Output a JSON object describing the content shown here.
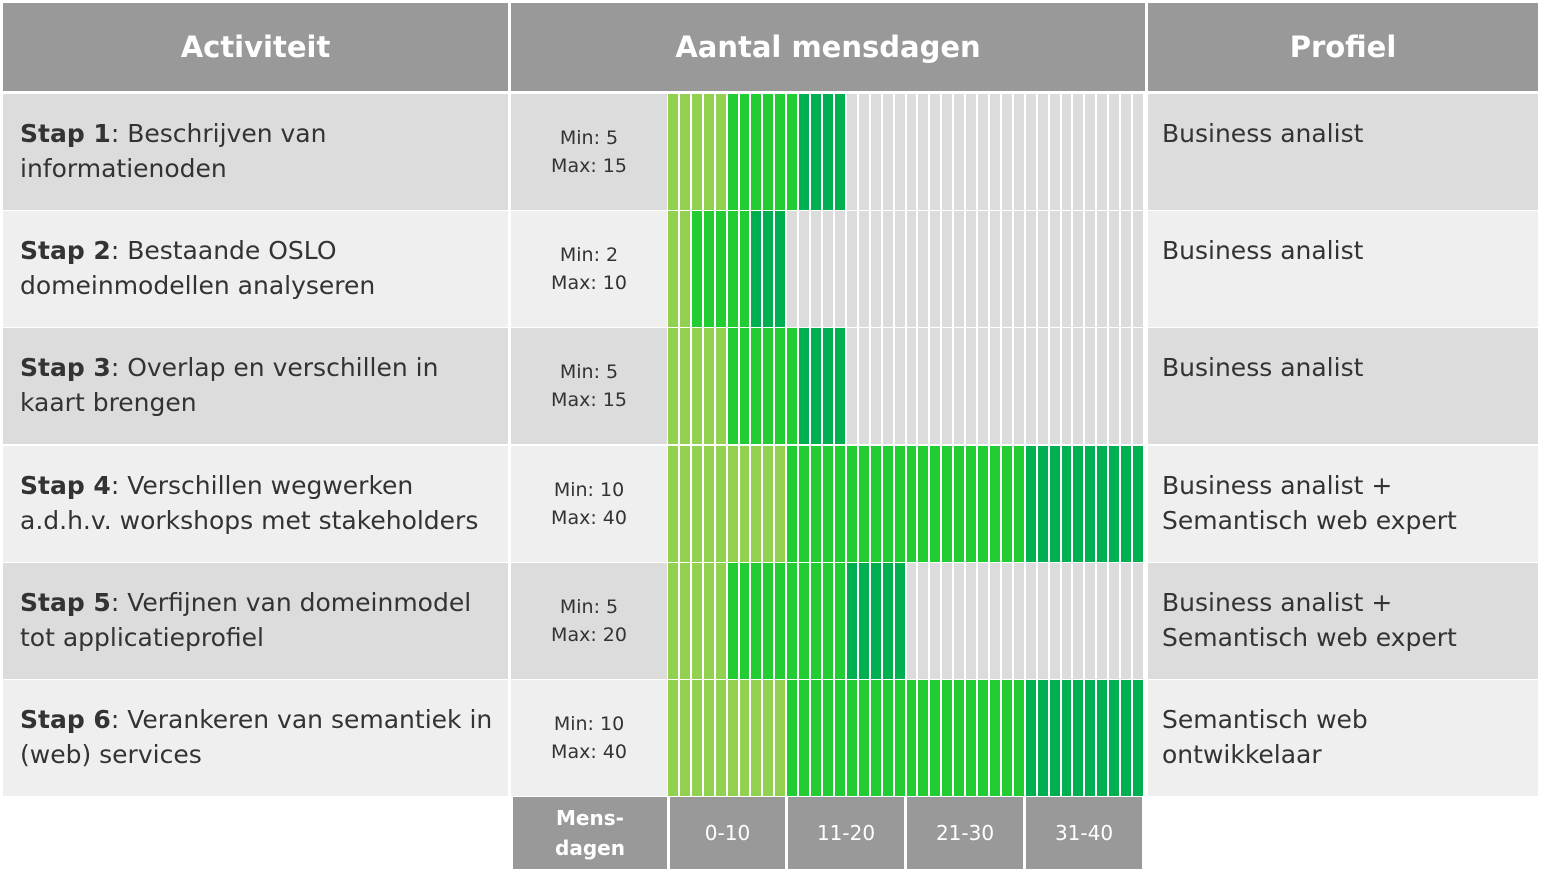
{
  "headers": {
    "activity": "Activiteit",
    "mandays": "Aantal mensdagen",
    "profile": "Profiel"
  },
  "rows": [
    {
      "step": "Stap 1",
      "name": "Beschrijven van informatienoden",
      "min_label": "Min: 5",
      "max_label": "Max: 15",
      "min": 5,
      "max": 15,
      "profile_lines": [
        "Business analist"
      ]
    },
    {
      "step": "Stap 2",
      "name": "Bestaande OSLO domeinmodellen analyseren",
      "min_label": "Min: 2",
      "max_label": "Max: 10",
      "min": 2,
      "max": 10,
      "profile_lines": [
        "Business analist"
      ]
    },
    {
      "step": "Stap 3",
      "name": "Overlap en verschillen in kaart brengen",
      "min_label": "Min: 5",
      "max_label": "Max: 15",
      "min": 5,
      "max": 15,
      "profile_lines": [
        "Business analist"
      ]
    },
    {
      "step": "Stap 4",
      "name": "Verschillen wegwerken a.d.h.v. workshops met stakeholders",
      "min_label": "Min: 10",
      "max_label": "Max: 40",
      "min": 10,
      "max": 40,
      "profile_lines": [
        "Business analist +",
        "Semantisch web expert"
      ]
    },
    {
      "step": "Stap 5",
      "name": "Verfijnen van domeinmodel tot applicatieprofiel",
      "min_label": "Min: 5",
      "max_label": "Max: 20",
      "min": 5,
      "max": 20,
      "profile_lines": [
        "Business analist +",
        "Semantisch web expert"
      ]
    },
    {
      "step": "Stap 6",
      "name": "Verankeren van semantiek in (web) services",
      "min_label": "Min: 10",
      "max_label": "Max: 40",
      "min": 10,
      "max": 40,
      "profile_lines": [
        "Semantisch web",
        "ontwikkelaar"
      ]
    }
  ],
  "footer": {
    "unit_line1": "Mens-",
    "unit_line2": "dagen",
    "ranges": [
      "0-10",
      "11-20",
      "21-30",
      "31-40"
    ]
  },
  "scale_max": 40,
  "colors": {
    "header_bg": "#999999",
    "row_dark": "#dcdcdc",
    "row_light": "#efefef",
    "min_fill": "#92d050",
    "mid_fill": "#22cc33",
    "max_fill": "#00b050",
    "empty_fill": "#dcdcdc"
  }
}
